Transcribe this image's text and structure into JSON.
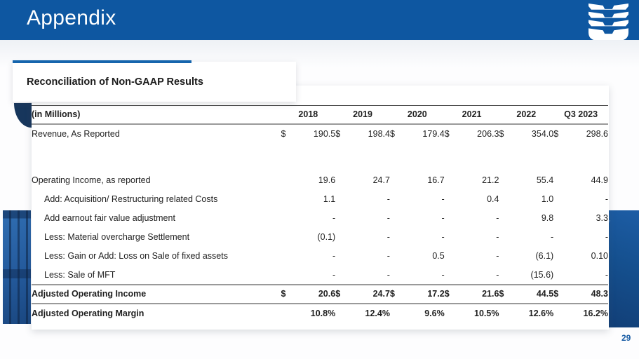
{
  "slide": {
    "title": "Appendix",
    "section_title": "Reconciliation of Non-GAAP Results",
    "page_number": "29"
  },
  "colors": {
    "header_blue": "#0e57a1",
    "accent_blue": "#1665ad",
    "fold_navy": "#17365c",
    "page_number_blue": "#1b5ea6"
  },
  "logo": {
    "icon": "stacked-u-logo",
    "color": "#ffffff"
  },
  "table": {
    "unit_label": "(in Millions)",
    "currency_symbol": "$",
    "columns": [
      "2018",
      "2019",
      "2020",
      "2021",
      "2022",
      "Q3 2023"
    ],
    "rows": [
      {
        "label": "Revenue, As Reported",
        "indent": false,
        "bold": false,
        "currency": true,
        "values": [
          "190.5",
          "198.4",
          "179.4",
          "206.3",
          "354.0",
          "298.6"
        ],
        "spacer_after": true
      },
      {
        "label": "Operating Income, as reported",
        "indent": false,
        "bold": false,
        "currency": false,
        "values": [
          "19.6",
          "24.7",
          "16.7",
          "21.2",
          "55.4",
          "44.9"
        ]
      },
      {
        "label": "Add: Acquisition/ Restructuring related Costs",
        "indent": true,
        "bold": false,
        "currency": false,
        "values": [
          "1.1",
          "-",
          "-",
          "0.4",
          "1.0",
          "-"
        ]
      },
      {
        "label": "Add earnout fair value adjustment",
        "indent": true,
        "bold": false,
        "currency": false,
        "values": [
          "-",
          "-",
          "-",
          "-",
          "9.8",
          "3.3"
        ]
      },
      {
        "label": "Less: Material overcharge Settlement",
        "indent": true,
        "bold": false,
        "currency": false,
        "values": [
          "(0.1)",
          "-",
          "-",
          "-",
          "-",
          "-"
        ]
      },
      {
        "label": "Less: Gain or Add: Loss on Sale of fixed assets",
        "indent": true,
        "bold": false,
        "currency": false,
        "values": [
          "-",
          "-",
          "0.5",
          "-",
          "(6.1)",
          "0.10"
        ]
      },
      {
        "label": "Less: Sale of MFT",
        "indent": true,
        "bold": false,
        "currency": false,
        "values": [
          "-",
          "-",
          "-",
          "-",
          "(15.6)",
          "-"
        ]
      },
      {
        "label": "Adjusted Operating Income",
        "indent": false,
        "bold": true,
        "currency": true,
        "line_top": true,
        "line_bottom": true,
        "values": [
          "20.6",
          "24.7",
          "17.2",
          "21.6",
          "44.5",
          "48.3"
        ]
      },
      {
        "label": "Adjusted Operating Margin",
        "indent": false,
        "bold": true,
        "currency": false,
        "line_bottom": false,
        "values": [
          "10.8%",
          "12.4%",
          "9.6%",
          "10.5%",
          "12.6%",
          "16.2%"
        ]
      }
    ]
  }
}
